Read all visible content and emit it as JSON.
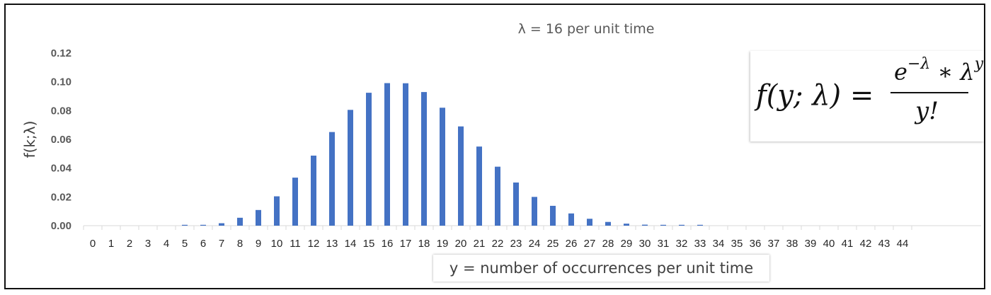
{
  "chart_data": {
    "type": "bar",
    "title": "λ = 16 per unit time",
    "xlabel": "y = number of occurrences per unit time",
    "ylabel": "f(k;λ)",
    "ylim": [
      0,
      0.12
    ],
    "yticks": [
      "0.00",
      "0.02",
      "0.04",
      "0.06",
      "0.08",
      "0.10",
      "0.12"
    ],
    "categories": [
      "0",
      "1",
      "2",
      "3",
      "4",
      "5",
      "6",
      "7",
      "8",
      "9",
      "10",
      "11",
      "12",
      "13",
      "14",
      "15",
      "16",
      "17",
      "18",
      "19",
      "20",
      "21",
      "22",
      "23",
      "24",
      "25",
      "26",
      "27",
      "28",
      "29",
      "30",
      "31",
      "32",
      "33",
      "34",
      "35",
      "36",
      "37",
      "38",
      "39",
      "40",
      "41",
      "42",
      "43",
      "44"
    ],
    "values": [
      0.0,
      0.0,
      0.0,
      0.0,
      0.0,
      0.0001,
      0.0004,
      0.0017,
      0.0055,
      0.0109,
      0.0204,
      0.0334,
      0.0487,
      0.0651,
      0.0805,
      0.0924,
      0.0991,
      0.099,
      0.0929,
      0.082,
      0.069,
      0.055,
      0.041,
      0.03,
      0.02,
      0.0138,
      0.0085,
      0.0048,
      0.0026,
      0.0014,
      0.0007,
      0.0004,
      0.0002,
      0.0001,
      0,
      0,
      0,
      0,
      0,
      0,
      0,
      0,
      0,
      0,
      0
    ],
    "grid": false,
    "bar_color": "#4472C4",
    "axis_color": "#D9D9D9"
  },
  "formula": {
    "lhs": "f(y; λ) =",
    "numerator_base": "e",
    "numerator_exp": "−λ",
    "numerator_mid": " ∗ λ",
    "numerator_exp2": "y",
    "denominator": "y!"
  }
}
